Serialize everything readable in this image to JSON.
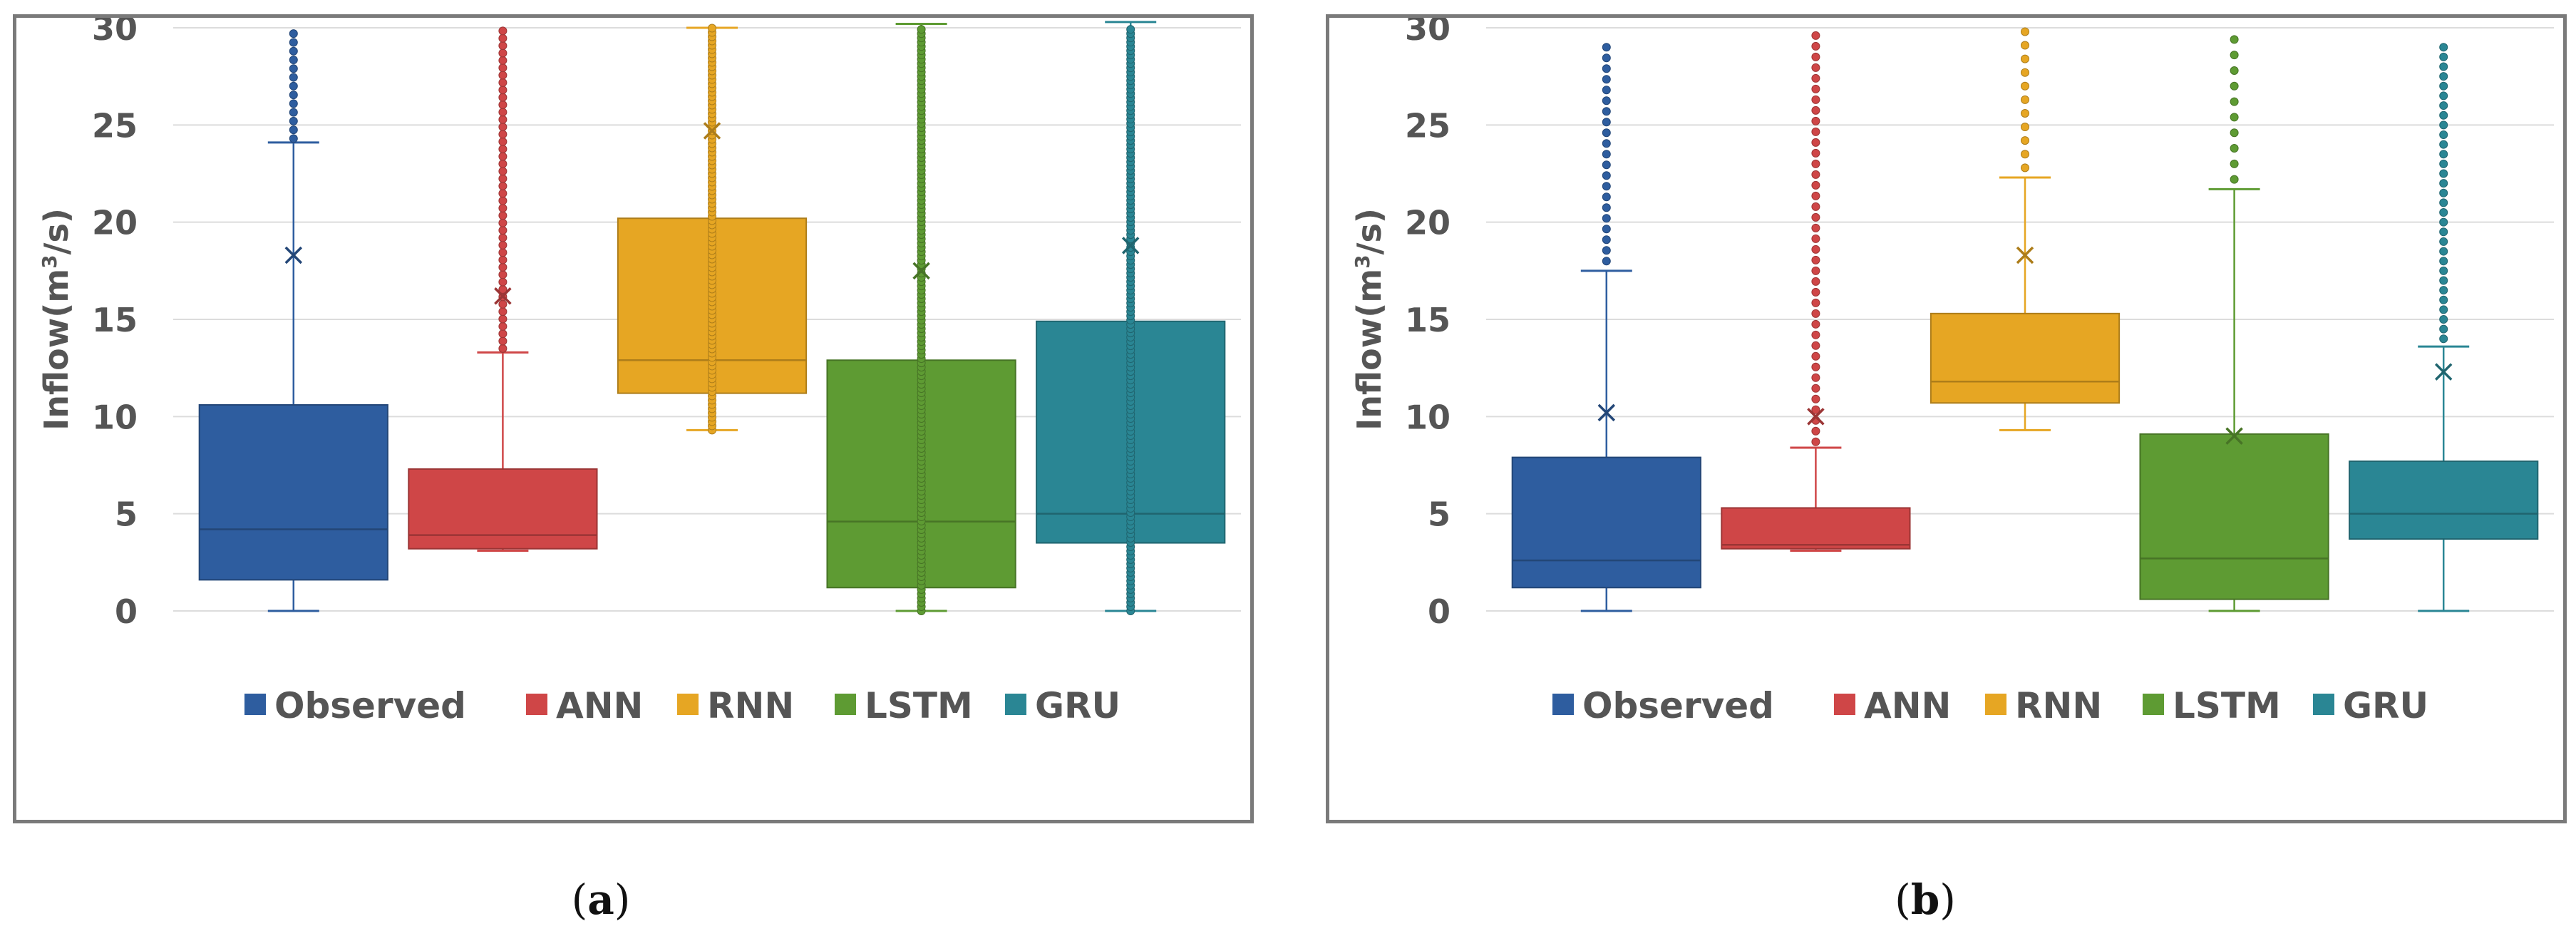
{
  "colors": {
    "Observed": "#2e5d9f",
    "ANN": "#cf4647",
    "RNN": "#e6a623",
    "LSTM": "#5e9b33",
    "GRU": "#2a8694"
  },
  "chart_data": [
    {
      "type": "box",
      "panel": "(a)",
      "ylabel_prefix": "Inflow(m",
      "ylabel_sup": "3",
      "ylabel_suffix": "/s)",
      "ylim": [
        0,
        30
      ],
      "yticks": [
        0,
        5,
        10,
        15,
        20,
        25,
        30
      ],
      "grid": true,
      "legend_position": "bottom",
      "legend": [
        "Observed",
        "ANN",
        "RNN",
        "LSTM",
        "GRU"
      ],
      "series": [
        {
          "name": "Observed",
          "min": 0,
          "q1": 1.6,
          "median": 4.2,
          "q3": 10.6,
          "max": 24.1,
          "mean": 18.3,
          "outliers_from": 24.3,
          "outliers_to": 30,
          "outlier_step": 0.45
        },
        {
          "name": "ANN",
          "min": 3.1,
          "q1": 3.2,
          "median": 3.9,
          "q3": 7.3,
          "max": 13.3,
          "mean": 16.2,
          "outliers_from": 13.5,
          "outliers_to": 30,
          "outlier_step": 0.38
        },
        {
          "name": "RNN",
          "min": 9.3,
          "q1": 11.2,
          "median": 12.9,
          "q3": 20.2,
          "max": 30,
          "mean": 24.7,
          "outliers_from": 9.3,
          "outliers_to": 30,
          "outlier_step": 0.22
        },
        {
          "name": "LSTM",
          "min": 0,
          "q1": 1.2,
          "median": 4.6,
          "q3": 12.9,
          "max": 30.2,
          "mean": 17.5,
          "outliers_from": 0,
          "outliers_to": 30,
          "outlier_step": 0.22
        },
        {
          "name": "GRU",
          "min": 0,
          "q1": 3.5,
          "median": 5.0,
          "q3": 14.9,
          "max": 30.3,
          "mean": 18.8,
          "outliers_from": 0,
          "outliers_to": 30,
          "outlier_step": 0.22
        }
      ]
    },
    {
      "type": "box",
      "panel": "(b)",
      "ylabel_prefix": "Inflow(m",
      "ylabel_sup": "3",
      "ylabel_suffix": "/s)",
      "ylim": [
        0,
        30
      ],
      "yticks": [
        0,
        5,
        10,
        15,
        20,
        25,
        30
      ],
      "grid": true,
      "legend_position": "bottom",
      "legend": [
        "Observed",
        "ANN",
        "RNN",
        "LSTM",
        "GRU"
      ],
      "series": [
        {
          "name": "Observed",
          "min": 0,
          "q1": 1.2,
          "median": 2.6,
          "q3": 7.9,
          "max": 17.5,
          "mean": 10.2,
          "outliers_from": 18.0,
          "outliers_to": 29.0,
          "outlier_step": 0.55
        },
        {
          "name": "ANN",
          "min": 3.1,
          "q1": 3.2,
          "median": 3.4,
          "q3": 5.3,
          "max": 8.4,
          "mean": 10.0,
          "outliers_from": 8.7,
          "outliers_to": 30,
          "outlier_step": 0.55
        },
        {
          "name": "RNN",
          "min": 9.3,
          "q1": 10.7,
          "median": 11.8,
          "q3": 15.3,
          "max": 22.3,
          "mean": 18.3,
          "outliers_from": 22.8,
          "outliers_to": 30,
          "outlier_step": 0.7
        },
        {
          "name": "LSTM",
          "min": 0,
          "q1": 0.6,
          "median": 2.7,
          "q3": 9.1,
          "max": 21.7,
          "mean": 9.0,
          "outliers_from": 22.2,
          "outliers_to": 30,
          "outlier_step": 0.8
        },
        {
          "name": "GRU",
          "min": 0,
          "q1": 3.7,
          "median": 5.0,
          "q3": 7.7,
          "max": 13.6,
          "mean": 12.3,
          "outliers_from": 14.0,
          "outliers_to": 29.3,
          "outlier_step": 0.5
        }
      ]
    }
  ],
  "captions": {
    "a": {
      "open": "(",
      "label": "a",
      "close": ")"
    },
    "b": {
      "open": "(",
      "label": "b",
      "close": ")"
    }
  }
}
